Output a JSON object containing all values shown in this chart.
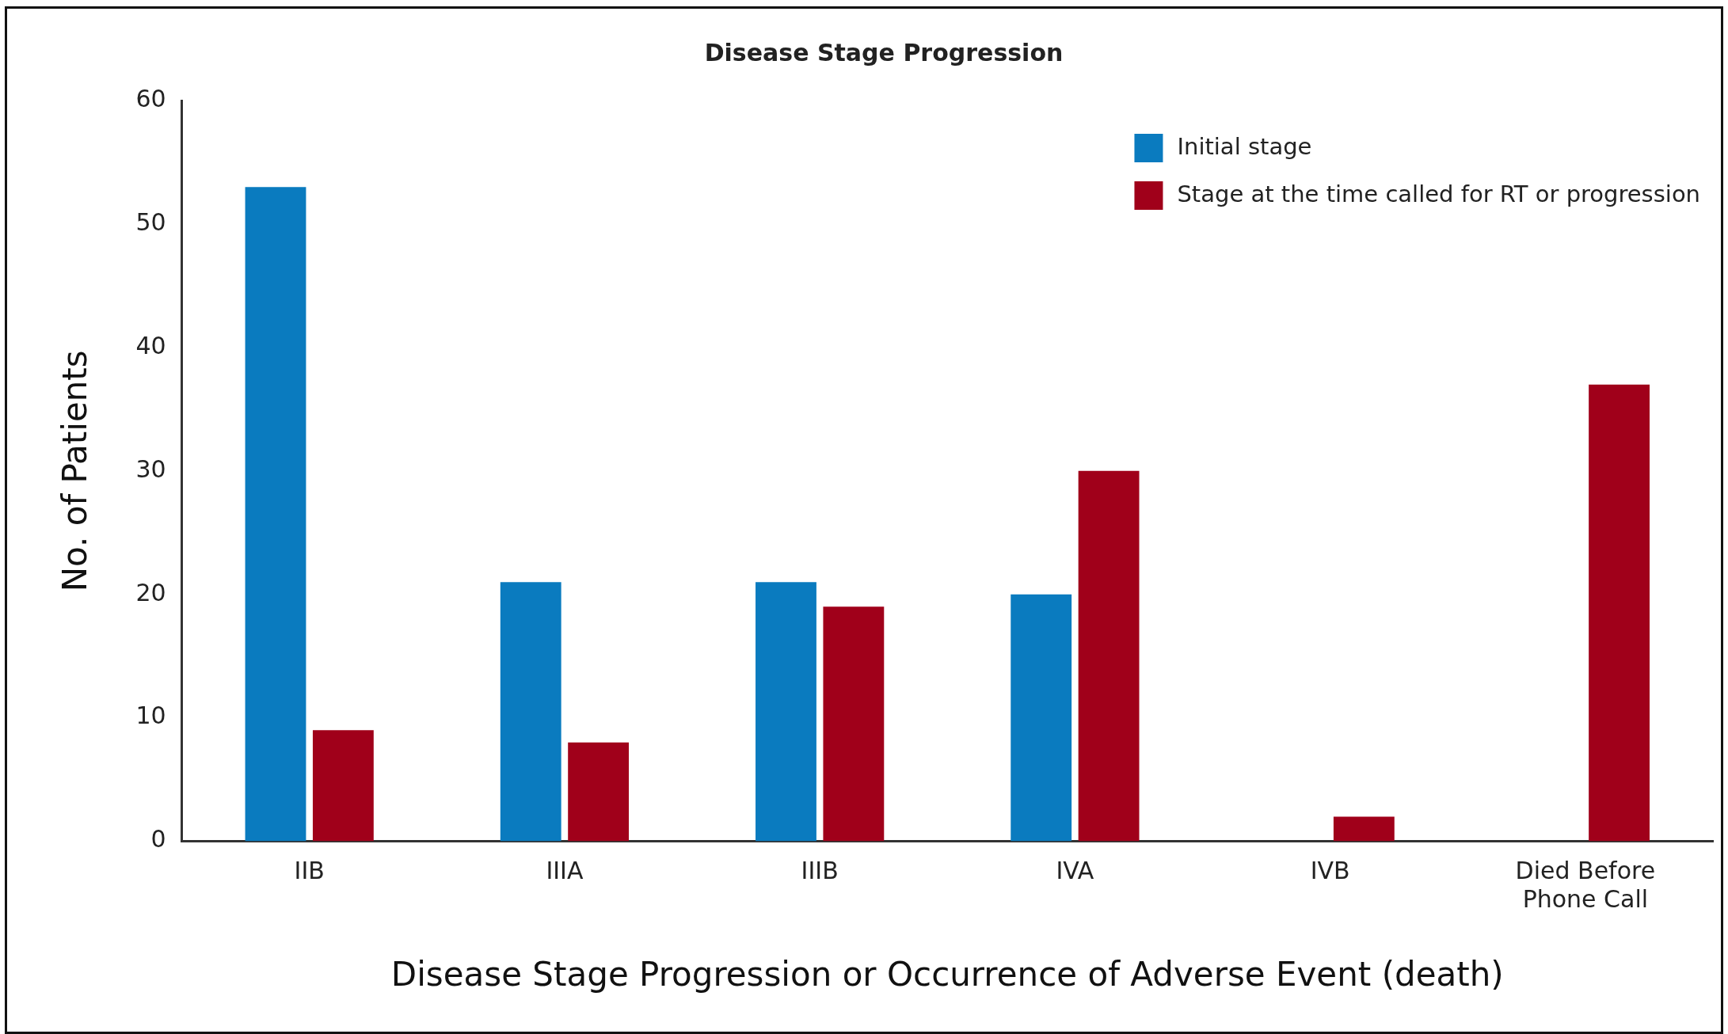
{
  "chart_data": {
    "type": "bar",
    "title": "Disease Stage Progression",
    "xlabel": "Disease Stage Progression or Occurrence of Adverse Event (death)",
    "ylabel": "No. of Patients",
    "categories": [
      "IIB",
      "IIIA",
      "IIIB",
      "IVA",
      "IVB",
      "Died Before Phone Call"
    ],
    "series": [
      {
        "name": "Initial stage",
        "color": "#0a7bbf",
        "values": [
          53,
          21,
          21,
          20,
          null,
          null
        ]
      },
      {
        "name": "Stage at the time called for RT or progression",
        "color": "#a0001a",
        "values": [
          9,
          8,
          19,
          30,
          2,
          37
        ]
      }
    ],
    "ylim": [
      0,
      60
    ],
    "yticks": [
      0,
      10,
      20,
      30,
      40,
      50,
      60
    ],
    "grid": false,
    "legend": "top right"
  }
}
